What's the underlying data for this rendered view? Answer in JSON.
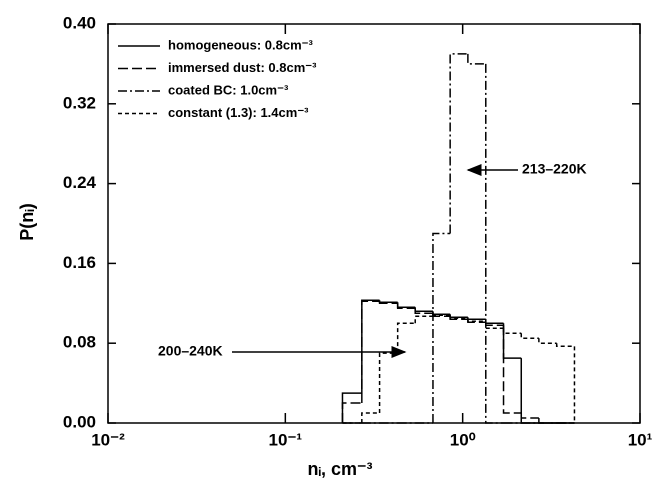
{
  "chart_data": {
    "type": "step-histogram",
    "xlabel": "nᵢ, cm⁻³",
    "ylabel": "P(nᵢ)",
    "xscale": "log",
    "xlim": [
      0.01,
      10
    ],
    "ylim": [
      0,
      0.4
    ],
    "xticks": [
      {
        "value": 0.01,
        "label": "10⁻²"
      },
      {
        "value": 0.1,
        "label": "10⁻¹"
      },
      {
        "value": 1,
        "label": "10⁰"
      },
      {
        "value": 10,
        "label": "10¹"
      }
    ],
    "yticks": [
      {
        "value": 0,
        "label": "0.00"
      },
      {
        "value": 0.08,
        "label": "0.08"
      },
      {
        "value": 0.16,
        "label": "0.16"
      },
      {
        "value": 0.24,
        "label": "0.24"
      },
      {
        "value": 0.32,
        "label": "0.32"
      },
      {
        "value": 0.4,
        "label": "0.40"
      }
    ],
    "bins": [
      0.21,
      0.27,
      0.34,
      0.43,
      0.54,
      0.68,
      0.85,
      1.07,
      1.35,
      1.7,
      2.14,
      2.69,
      3.39,
      4.27
    ],
    "legend": "upper left",
    "series": [
      {
        "name": "homogeneous: 0.8cm⁻³",
        "color": "#000000",
        "linestyle": "solid",
        "values": [
          0.03,
          0.123,
          0.121,
          0.116,
          0.112,
          0.109,
          0.106,
          0.104,
          0.1,
          0.065,
          0,
          0,
          0
        ]
      },
      {
        "name": "immersed dust: 0.8cm⁻³",
        "color": "#000000",
        "linestyle": "dashed",
        "values": [
          0.02,
          0.122,
          0.12,
          0.115,
          0.11,
          0.107,
          0.104,
          0.101,
          0.098,
          0.01,
          0.005,
          0,
          0
        ]
      },
      {
        "name": "coated BC: 1.0cm⁻³",
        "color": "#000000",
        "linestyle": "dashdot",
        "values": [
          0,
          0,
          0,
          0,
          0,
          0.19,
          0.37,
          0.36,
          0,
          0,
          0,
          0,
          0
        ]
      },
      {
        "name": "constant (1.3): 1.4cm⁻³",
        "color": "#000000",
        "linestyle": "dotted",
        "values": [
          0,
          0.01,
          0.07,
          0.1,
          0.107,
          0.108,
          0.105,
          0.102,
          0.095,
          0.09,
          0.085,
          0.08,
          0.077
        ]
      }
    ],
    "annotations": [
      "213–220K",
      "200–240K"
    ]
  }
}
